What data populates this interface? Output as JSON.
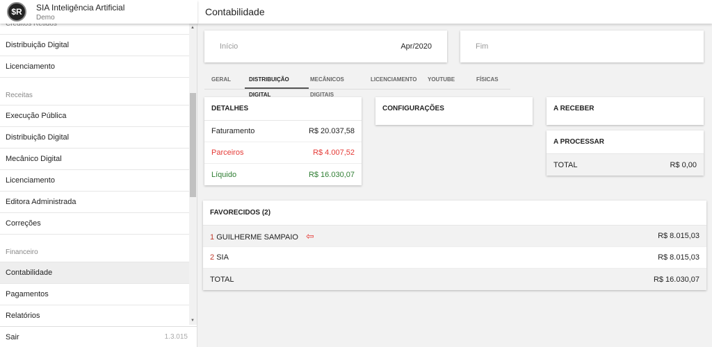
{
  "app": {
    "title": "SIA Inteligência Artificial",
    "subtitle": "Demo",
    "logo": "$R"
  },
  "sidebar": {
    "partial_top": "Créditos Retidos",
    "items": [
      {
        "label": "Distribuição Digital"
      },
      {
        "label": "Licenciamento"
      },
      {
        "section": "Receitas"
      },
      {
        "label": "Execução Pública"
      },
      {
        "label": "Distribuição Digital"
      },
      {
        "label": "Mecânico Digital"
      },
      {
        "label": "Licenciamento"
      },
      {
        "label": "Editora Administrada"
      },
      {
        "label": "Correções"
      },
      {
        "section": "Financeiro"
      },
      {
        "label": "Contabilidade",
        "active": true
      },
      {
        "label": "Pagamentos"
      },
      {
        "label": "Relatórios"
      }
    ],
    "logout": "Sair",
    "version": "1.3.015"
  },
  "header": {
    "title": "Contabilidade"
  },
  "dates": {
    "start_label": "Início",
    "start_value": "Apr/2020",
    "end_label": "Fim",
    "end_value": ""
  },
  "tabs": [
    "GERAL",
    "DISTRIBUIÇÃO DIGITAL",
    "MECÂNICOS DIGITAIS",
    "LICENCIAMENTO",
    "YOUTUBE",
    "FÍSICAS"
  ],
  "active_tab": 1,
  "detalhes": {
    "title": "DETALHES",
    "rows": [
      {
        "label": "Faturamento",
        "value": "R$ 20.037,58"
      },
      {
        "label": "Parceiros",
        "value": "R$ 4.007,52"
      },
      {
        "label": "Líquido",
        "value": "R$ 16.030,07"
      }
    ]
  },
  "configuracoes": {
    "title": "CONFIGURAÇÕES"
  },
  "a_receber": {
    "title": "A RECEBER"
  },
  "a_processar": {
    "title": "A PROCESSAR",
    "total_label": "TOTAL",
    "total_value": "R$ 0,00"
  },
  "favorecidos": {
    "title": "FAVORECIDOS (2)",
    "rows": [
      {
        "num": "1",
        "name": "GUILHERME SAMPAIO",
        "value": "R$ 8.015,03"
      },
      {
        "num": "2",
        "name": "SIA",
        "value": "R$ 8.015,03"
      }
    ],
    "total_label": "TOTAL",
    "total_value": "R$ 16.030,07"
  },
  "colors": {
    "red": "#e53935",
    "green": "#2e7d32"
  }
}
